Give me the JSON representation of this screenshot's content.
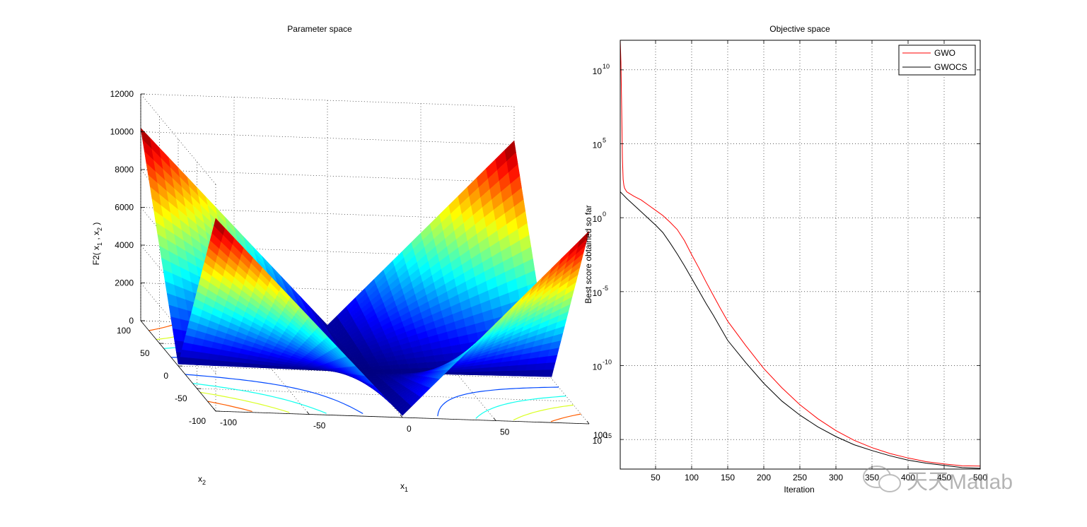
{
  "window": {
    "background": "#ffffff",
    "watermark": "天天Matlab"
  },
  "chart_data": [
    {
      "type": "surface3d",
      "title": "Parameter space",
      "xlabel": "x",
      "xlabel_sub": "1",
      "ylabel": "x",
      "ylabel_sub": "2",
      "zlabel_parts": [
        "F2( x",
        "1",
        " , x",
        "2",
        " )"
      ],
      "x_ticks": [
        -100,
        -50,
        0,
        50,
        100
      ],
      "y_ticks": [
        -100,
        -50,
        0,
        50,
        100
      ],
      "z_ticks": [
        0,
        2000,
        4000,
        6000,
        8000,
        10000,
        12000
      ],
      "xlim": [
        -100,
        100
      ],
      "ylim": [
        -100,
        100
      ],
      "zlim": [
        0,
        12000
      ],
      "colormap": "jet",
      "function": "F2(x1,x2) = |x1| + |x2| + |x1|*|x2|",
      "corner_values": {
        "max": 10200,
        "min": 0
      },
      "contour_levels": [
        2000,
        4000,
        6000,
        8000,
        10000
      ],
      "grid": true
    },
    {
      "type": "line",
      "title": "Objective space",
      "xlabel": "Iteration",
      "ylabel": "Best score obtained so far",
      "yscale": "log",
      "xlim": [
        1,
        500
      ],
      "ylim_exp": [
        -17,
        12
      ],
      "x_ticks": [
        50,
        100,
        150,
        200,
        250,
        300,
        350,
        400,
        450,
        500
      ],
      "x_tick_labels": [
        "50",
        "100",
        "150",
        "200",
        "250",
        "300",
        "350",
        "400",
        "450",
        "500"
      ],
      "y_ticks_exp": [
        -15,
        -10,
        -5,
        0,
        5,
        10
      ],
      "y_tick_base": "10",
      "legend_position": "top-right",
      "grid": true,
      "series": [
        {
          "name": "GWO",
          "color": "#ff0000",
          "x": [
            1,
            2,
            3,
            4,
            5,
            6,
            7,
            10,
            15,
            20,
            30,
            40,
            50,
            60,
            70,
            80,
            90,
            100,
            110,
            120,
            130,
            140,
            150,
            175,
            200,
            225,
            250,
            275,
            300,
            325,
            350,
            375,
            400,
            425,
            450,
            475,
            500
          ],
          "log10_y": [
            12.0,
            10.5,
            7.5,
            4.0,
            2.6,
            2.2,
            2.0,
            1.75,
            1.6,
            1.45,
            1.2,
            0.85,
            0.5,
            0.15,
            -0.3,
            -0.8,
            -1.55,
            -2.5,
            -3.4,
            -4.35,
            -5.25,
            -6.15,
            -7.0,
            -8.65,
            -10.2,
            -11.5,
            -12.65,
            -13.6,
            -14.4,
            -15.05,
            -15.55,
            -15.95,
            -16.25,
            -16.5,
            -16.65,
            -16.78,
            -16.8
          ]
        },
        {
          "name": "GWOCS",
          "color": "#000000",
          "x": [
            1,
            5,
            10,
            20,
            30,
            40,
            50,
            60,
            70,
            80,
            90,
            100,
            110,
            120,
            130,
            140,
            150,
            175,
            200,
            225,
            250,
            275,
            300,
            325,
            350,
            375,
            400,
            425,
            450,
            475,
            500
          ],
          "log10_y": [
            1.75,
            1.55,
            1.3,
            0.85,
            0.4,
            -0.05,
            -0.5,
            -1.0,
            -1.7,
            -2.45,
            -3.25,
            -4.1,
            -4.95,
            -5.8,
            -6.6,
            -7.45,
            -8.3,
            -9.8,
            -11.2,
            -12.4,
            -13.35,
            -14.15,
            -14.8,
            -15.35,
            -15.75,
            -16.1,
            -16.4,
            -16.6,
            -16.75,
            -16.9,
            -16.95
          ]
        }
      ]
    }
  ]
}
